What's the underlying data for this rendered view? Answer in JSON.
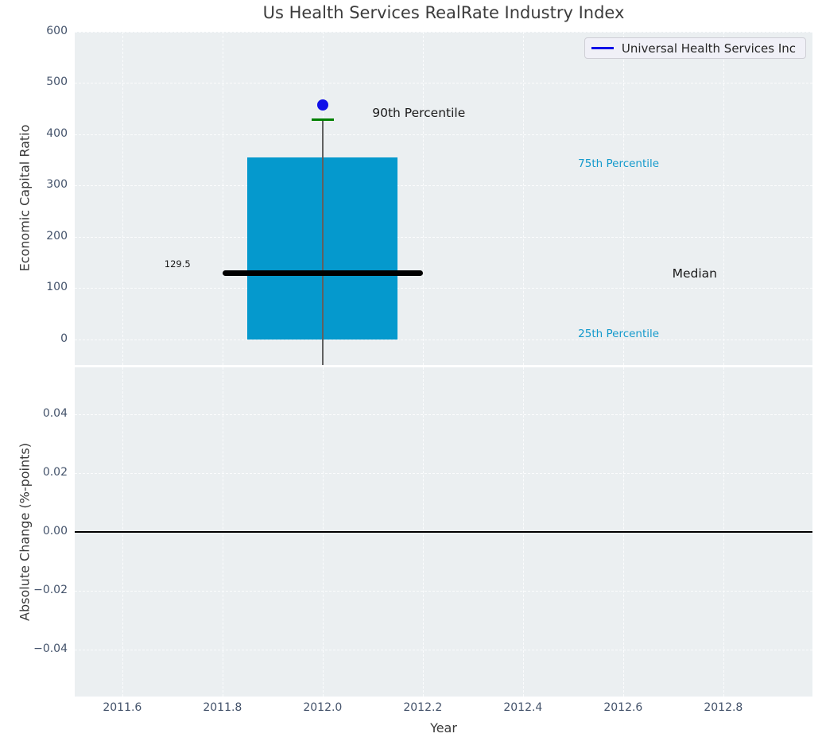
{
  "figure": {
    "background": "#ffffff",
    "axes_background": "#ebeff1",
    "grid_color": "#ffffff",
    "tick_label_color": "#44536b",
    "text_color": "#3a3a3a"
  },
  "title": "Us Health Services RealRate Industry Index",
  "legend": {
    "position": "upper right",
    "label": "Universal Health Services Inc",
    "line_color": "#1010e8"
  },
  "chart_data": [
    {
      "type": "box",
      "title": "Us Health Services RealRate Industry Index",
      "xlabel": "Year",
      "ylabel": "Economic Capital Ratio",
      "xlim": [
        2011.505,
        2012.978
      ],
      "ylim": [
        -50,
        600
      ],
      "grid": "white-dashed",
      "x_ticks": [
        2011.6,
        2011.8,
        2012.0,
        2012.2,
        2012.4,
        2012.6,
        2012.8
      ],
      "x_tick_labels": [
        "2011.6",
        "2011.8",
        "2012.0",
        "2012.2",
        "2012.4",
        "2012.6",
        "2012.8"
      ],
      "y_ticks": [
        0,
        100,
        200,
        300,
        400,
        500,
        600
      ],
      "y_tick_labels": [
        "0",
        "100",
        "200",
        "300",
        "400",
        "500",
        "600"
      ],
      "legend_position": "upper right",
      "legend_entries": [
        {
          "label": "Universal Health Services Inc",
          "color": "#1010e8"
        }
      ],
      "box": {
        "x": 2012.0,
        "p25": 0,
        "median": 129.5,
        "p75": 355,
        "p90": 428,
        "company_point": 458,
        "whisker_low": -50,
        "bar_x_span": [
          2011.85,
          2012.15
        ],
        "median_x_span": [
          2011.8,
          2012.2
        ],
        "p90_tick_x_span": [
          2011.978,
          2012.022
        ],
        "bar_color": "#0599cd",
        "median_color": "#000000",
        "point_color": "#1010e8",
        "p90_tick_color": "#008000",
        "whisker_color": "#606060"
      },
      "annotations": [
        {
          "text": "90th Percentile",
          "x": 2012.099,
          "y": 442,
          "color": "#1a1a1a",
          "size": 15.5,
          "name": "annotation-90th-percentile"
        },
        {
          "text": "75th Percentile",
          "x": 2012.51,
          "y": 342,
          "color": "#149acc",
          "size": 13.5,
          "name": "annotation-75th-percentile"
        },
        {
          "text": "129.5",
          "x": 2011.684,
          "y": 147,
          "color": "#1a1a1a",
          "size": 11.5,
          "name": "annotation-median-value"
        },
        {
          "text": "Median",
          "x": 2012.698,
          "y": 128,
          "color": "#1a1a1a",
          "size": 15.5,
          "name": "annotation-median"
        },
        {
          "text": "25th Percentile",
          "x": 2012.51,
          "y": 10,
          "color": "#149acc",
          "size": 13.5,
          "name": "annotation-25th-percentile"
        }
      ]
    },
    {
      "type": "bar",
      "xlabel": "Year",
      "ylabel": "Absolute Change (%-points)",
      "xlim": [
        2011.505,
        2012.978
      ],
      "ylim": [
        -0.0559,
        0.0559
      ],
      "grid": "white-dashed",
      "x": [
        2012.0
      ],
      "values": [
        0.0
      ],
      "zero_line": true,
      "y_ticks": [
        -0.04,
        -0.02,
        0,
        0.02,
        0.04
      ],
      "y_tick_labels": [
        "−0.04",
        "−0.02",
        "0.00",
        "0.02",
        "0.04"
      ]
    }
  ]
}
